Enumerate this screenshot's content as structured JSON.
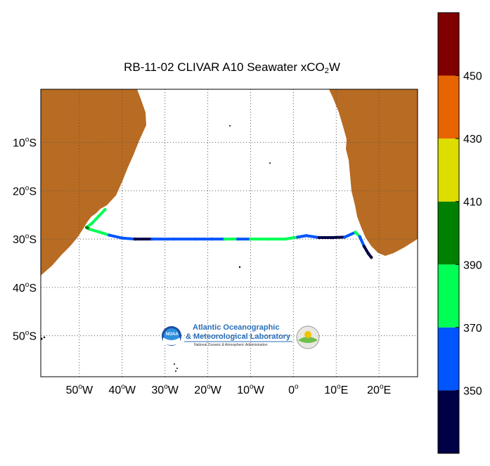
{
  "title": {
    "prefix": "RB-11-02 CLIVAR A10 Seawater xCO",
    "sub1": "2",
    "suffix": "W"
  },
  "lon_ticks": [
    {
      "value": -50,
      "num": "50",
      "hem": "W"
    },
    {
      "value": -40,
      "num": "40",
      "hem": "W"
    },
    {
      "value": -30,
      "num": "30",
      "hem": "W"
    },
    {
      "value": -20,
      "num": "20",
      "hem": "W"
    },
    {
      "value": -10,
      "num": "10",
      "hem": "W"
    },
    {
      "value": 0,
      "num": "0",
      "hem": ""
    },
    {
      "value": 10,
      "num": "10",
      "hem": "E"
    },
    {
      "value": 20,
      "num": "20",
      "hem": "E"
    }
  ],
  "lat_ticks": [
    {
      "value": -10,
      "num": "10",
      "hem": "S"
    },
    {
      "value": -20,
      "num": "20",
      "hem": "S"
    },
    {
      "value": -30,
      "num": "30",
      "hem": "S"
    },
    {
      "value": -40,
      "num": "40",
      "hem": "S"
    },
    {
      "value": -50,
      "num": "50",
      "hem": "S"
    }
  ],
  "degree_symbol": "o",
  "map_extent": {
    "lon": [
      -59,
      29
    ],
    "lat": [
      -58.5,
      1
    ]
  },
  "colorbar": {
    "range": [
      330,
      470
    ],
    "tick_labels": [
      "350",
      "370",
      "390",
      "410",
      "430",
      "450"
    ],
    "bins": [
      {
        "from": 330,
        "to": 350,
        "color": "#000046"
      },
      {
        "from": 350,
        "to": 370,
        "color": "#0055ff"
      },
      {
        "from": 370,
        "to": 390,
        "color": "#00ff55"
      },
      {
        "from": 390,
        "to": 410,
        "color": "#008000"
      },
      {
        "from": 410,
        "to": 430,
        "color": "#dddd00"
      },
      {
        "from": 430,
        "to": 450,
        "color": "#e86400"
      },
      {
        "from": 450,
        "to": 470,
        "color": "#800000"
      }
    ]
  },
  "colors": {
    "land": "#b86b22",
    "ocean": "#ffffff",
    "grid": "#555555"
  },
  "chart_data": {
    "type": "scatter",
    "title": "RB-11-02 CLIVAR A10 Seawater xCO2W",
    "xlabel": "",
    "ylabel": "",
    "xlim": [
      -59,
      29
    ],
    "ylim": [
      -58.5,
      1
    ],
    "grid": true,
    "legend": "colorbar-right",
    "track": [
      {
        "lon": -44.0,
        "lat": -23.9,
        "xco2": 385
      },
      {
        "lon": -45.5,
        "lat": -25.3,
        "xco2": 385
      },
      {
        "lon": -47.0,
        "lat": -26.7,
        "xco2": 380
      },
      {
        "lon": -48.3,
        "lat": -27.6,
        "xco2": 395
      },
      {
        "lon": -47.5,
        "lat": -28.0,
        "xco2": 380
      },
      {
        "lon": -45.5,
        "lat": -28.5,
        "xco2": 375
      },
      {
        "lon": -43.0,
        "lat": -29.2,
        "xco2": 360
      },
      {
        "lon": -40.0,
        "lat": -29.8,
        "xco2": 360
      },
      {
        "lon": -37.0,
        "lat": -30.0,
        "xco2": 345
      },
      {
        "lon": -33.0,
        "lat": -30.0,
        "xco2": 360
      },
      {
        "lon": -28.0,
        "lat": -30.0,
        "xco2": 355
      },
      {
        "lon": -23.0,
        "lat": -30.0,
        "xco2": 360
      },
      {
        "lon": -19.0,
        "lat": -30.0,
        "xco2": 360
      },
      {
        "lon": -16.0,
        "lat": -30.0,
        "xco2": 375
      },
      {
        "lon": -13.0,
        "lat": -30.0,
        "xco2": 365
      },
      {
        "lon": -10.0,
        "lat": -30.0,
        "xco2": 375
      },
      {
        "lon": -6.0,
        "lat": -30.0,
        "xco2": 380
      },
      {
        "lon": -2.0,
        "lat": -30.0,
        "xco2": 375
      },
      {
        "lon": 1.0,
        "lat": -29.6,
        "xco2": 360
      },
      {
        "lon": 3.0,
        "lat": -29.3,
        "xco2": 360
      },
      {
        "lon": 6.0,
        "lat": -29.7,
        "xco2": 345
      },
      {
        "lon": 9.0,
        "lat": -29.7,
        "xco2": 340
      },
      {
        "lon": 12.0,
        "lat": -29.6,
        "xco2": 355
      },
      {
        "lon": 14.5,
        "lat": -28.6,
        "xco2": 375
      },
      {
        "lon": 15.5,
        "lat": -29.5,
        "xco2": 355
      },
      {
        "lon": 16.5,
        "lat": -31.5,
        "xco2": 345
      },
      {
        "lon": 17.5,
        "lat": -33.0,
        "xco2": 340
      },
      {
        "lon": 18.2,
        "lat": -33.8,
        "xco2": 340
      }
    ]
  },
  "logo": {
    "line1": "Atlantic Oceanographic",
    "line2": "& Meteorological Laboratory",
    "line3": "National Oceanic & Atmospheric Administration",
    "badge": "NOAA"
  }
}
